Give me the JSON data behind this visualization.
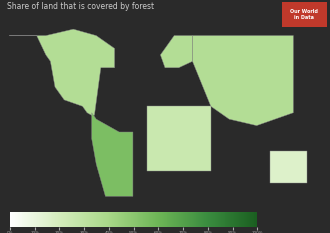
{
  "title": "Share of land that is covered by forest",
  "source_line1": "Our World",
  "source_line2": "in Data",
  "cmap_colors": [
    "#ffffff",
    "#d4edbc",
    "#a8d888",
    "#6db556",
    "#3a8c3f",
    "#1a5e20"
  ],
  "bg_color": "#2a2a2a",
  "ocean_color": "#3d3d3d",
  "missing_color": "#c8c8c8",
  "border_color": "#888888",
  "vmin": 0,
  "vmax": 100,
  "colorbar_ticks": [
    0,
    10,
    20,
    30,
    40,
    50,
    60,
    70,
    80,
    90,
    100
  ],
  "colorbar_ticklabels": [
    "0%",
    "10%",
    "20%",
    "30%",
    "40%",
    "50%",
    "60%",
    "70%",
    "80%",
    "90%",
    "100%"
  ],
  "title_color": "#cccccc",
  "title_fontsize": 5.5,
  "badge_color": "#c0392b",
  "badge_text_color": "#ffffff",
  "badge_fontsize": 3.5
}
